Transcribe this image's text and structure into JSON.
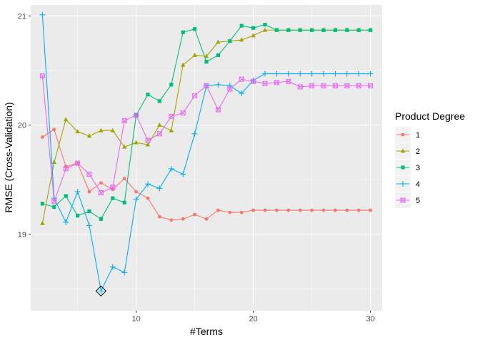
{
  "chart_data": {
    "type": "line",
    "xlabel": "#Terms",
    "ylabel": "RMSE (Cross-Validation)",
    "xlim": [
      1,
      31
    ],
    "ylim": [
      18.3,
      21.1
    ],
    "x_ticks": [
      10,
      20,
      30
    ],
    "x_tick_labels": [
      "10",
      "20",
      "30"
    ],
    "x_minor_ticks": [
      5,
      15,
      25
    ],
    "y_ticks": [
      19,
      20,
      21
    ],
    "y_tick_labels": [
      "19",
      "20",
      "21"
    ],
    "y_minor_ticks": [
      18.5,
      19.5,
      20.5
    ],
    "grid": true,
    "legend": {
      "title": "Product Degree",
      "position": "right"
    },
    "x": [
      2,
      3,
      4,
      5,
      6,
      7,
      8,
      9,
      10,
      11,
      12,
      13,
      14,
      15,
      16,
      17,
      18,
      19,
      20,
      21,
      22,
      23,
      24,
      25,
      26,
      27,
      28,
      29,
      30
    ],
    "series": [
      {
        "name": "1",
        "color": "#F8766D",
        "marker": "circle",
        "values": [
          19.89,
          19.96,
          19.62,
          19.65,
          19.39,
          19.47,
          19.41,
          19.51,
          19.39,
          19.33,
          19.16,
          19.13,
          19.14,
          19.18,
          19.14,
          19.22,
          19.2,
          19.2,
          19.22,
          19.22,
          19.22,
          19.22,
          19.22,
          19.22,
          19.22,
          19.22,
          19.22,
          19.22,
          19.22
        ]
      },
      {
        "name": "2",
        "color": "#A3A500",
        "marker": "triangle",
        "values": [
          19.1,
          19.66,
          20.05,
          19.94,
          19.9,
          19.95,
          19.95,
          19.8,
          19.84,
          19.82,
          20.0,
          19.95,
          20.55,
          20.64,
          20.63,
          20.76,
          20.77,
          20.78,
          20.82,
          20.87,
          20.87,
          20.87,
          20.87,
          20.87,
          20.87,
          20.87,
          20.87,
          20.87,
          20.87
        ]
      },
      {
        "name": "3",
        "color": "#00BF7D",
        "marker": "square",
        "values": [
          19.28,
          19.25,
          19.35,
          19.17,
          19.21,
          19.14,
          19.33,
          19.29,
          20.09,
          20.28,
          20.22,
          20.37,
          20.85,
          20.88,
          20.58,
          20.64,
          20.77,
          20.91,
          20.89,
          20.92,
          20.87,
          20.87,
          20.87,
          20.87,
          20.87,
          20.87,
          20.87,
          20.87,
          20.87
        ]
      },
      {
        "name": "4",
        "color": "#00B0F6",
        "marker": "plus",
        "values": [
          21.01,
          19.33,
          19.11,
          19.39,
          19.08,
          18.48,
          18.7,
          18.65,
          19.32,
          19.46,
          19.42,
          19.6,
          19.55,
          19.92,
          20.36,
          20.37,
          20.36,
          20.29,
          20.41,
          20.47,
          20.47,
          20.47,
          20.47,
          20.47,
          20.47,
          20.47,
          20.47,
          20.47,
          20.47
        ]
      },
      {
        "name": "5",
        "color": "#E76BF3",
        "marker": "square-x",
        "values": [
          20.45,
          19.3,
          19.6,
          19.65,
          19.55,
          19.38,
          19.43,
          20.04,
          20.09,
          19.86,
          19.92,
          20.08,
          20.11,
          20.27,
          20.36,
          20.14,
          20.33,
          20.42,
          20.4,
          20.38,
          20.39,
          20.4,
          20.35,
          20.36,
          20.36,
          20.36,
          20.36,
          20.36,
          20.36
        ]
      }
    ],
    "annotation": {
      "type": "diamond-marker",
      "series": "4",
      "x": 7,
      "y": 18.48
    }
  }
}
